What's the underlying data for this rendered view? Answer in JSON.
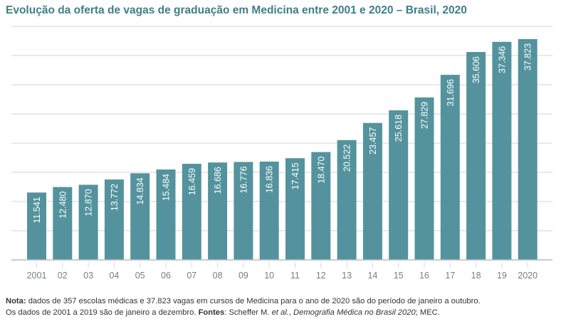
{
  "chart_data": {
    "type": "bar",
    "title": "Evolução da oferta de vagas de graduação em Medicina entre 2001 e 2020 – Brasil, 2020",
    "categories": [
      "2001",
      "02",
      "03",
      "04",
      "05",
      "06",
      "07",
      "08",
      "09",
      "10",
      "11",
      "12",
      "13",
      "14",
      "15",
      "16",
      "17",
      "18",
      "19",
      "2020"
    ],
    "values": [
      11541,
      12480,
      12870,
      13772,
      14834,
      15484,
      16459,
      16686,
      16776,
      16836,
      17415,
      18470,
      20522,
      23457,
      25618,
      27829,
      31696,
      35606,
      37346,
      37823
    ],
    "value_labels": [
      "11.541",
      "12.480",
      "12.870",
      "13.772",
      "14.834",
      "15.484",
      "16.459",
      "16.686",
      "16.776",
      "16.836",
      "17.415",
      "18.470",
      "20.522",
      "23.457",
      "25.618",
      "27.829",
      "31.696",
      "35.606",
      "37.346",
      "37.823"
    ],
    "xlabel": "",
    "ylabel": "",
    "ylim": [
      0,
      40000
    ],
    "grid": true,
    "legend": "none",
    "colors": {
      "bar": "#54939d",
      "grid": "#d2d4d6",
      "title": "#3e7f88",
      "tick_label": "#7a7e82"
    }
  },
  "note": {
    "nota_label": "Nota:",
    "line1_text": " dados de 357 escolas médicas e 37.823 vagas em cursos de Medicina para o ano de 2020 são do período de janeiro a outubro.",
    "line2_text": "Os dados de 2001 a 2019 são de janeiro a dezembro. ",
    "fontes_label": "Fontes",
    "fontes_sep": ": Scheffer M. ",
    "et_al": "et al.",
    "comma": ", ",
    "work_title": "Demografia Médica no Brasil 2020",
    "end": "; MEC."
  }
}
